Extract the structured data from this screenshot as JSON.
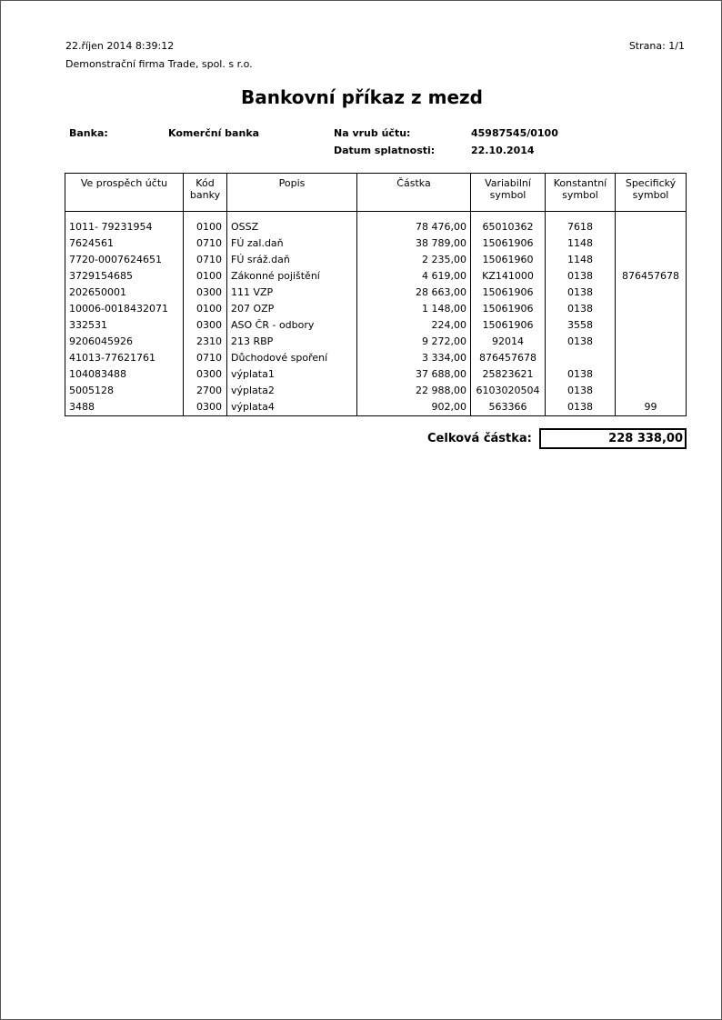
{
  "header": {
    "datetime": "22.říjen 2014  8:39:12",
    "page": "Strana: 1/1",
    "company": "Demonstrační firma Trade, spol. s r.o."
  },
  "title": "Bankovní příkaz z mezd",
  "info": {
    "bank_label": "Banka:",
    "bank_value": "Komerční banka",
    "debit_label": "Na vrub účtu:",
    "debit_value": "45987545/0100",
    "due_label": "Datum splatnosti:",
    "due_value": "22.10.2014"
  },
  "table": {
    "columns": [
      "Ve prospěch účtu",
      "Kód banky",
      "Popis",
      "Částka",
      "Variabilní symbol",
      "Konstantní symbol",
      "Specifický symbol"
    ],
    "rows": [
      [
        "1011- 79231954",
        "0100",
        "OSSZ",
        "78 476,00",
        "65010362",
        "7618",
        ""
      ],
      [
        "7624561",
        "0710",
        "FÚ zal.daň",
        "38 789,00",
        "15061906",
        "1148",
        ""
      ],
      [
        "7720-0007624651",
        "0710",
        "FÚ sráž.daň",
        "2 235,00",
        "15061960",
        "1148",
        ""
      ],
      [
        "3729154685",
        "0100",
        "Zákonné pojištění",
        "4 619,00",
        "KZ141000",
        "0138",
        "876457678"
      ],
      [
        "202650001",
        "0300",
        "111 VZP",
        "28 663,00",
        "15061906",
        "0138",
        ""
      ],
      [
        "10006-0018432071",
        "0100",
        "207 OZP",
        "1 148,00",
        "15061906",
        "0138",
        ""
      ],
      [
        "332531",
        "0300",
        "ASO ČR - odbory",
        "224,00",
        "15061906",
        "3558",
        ""
      ],
      [
        "9206045926",
        "2310",
        "213 RBP",
        "9 272,00",
        "92014",
        "0138",
        ""
      ],
      [
        "41013-77621761",
        "0710",
        "Důchodové spoření",
        "3 334,00",
        "876457678",
        "",
        ""
      ],
      [
        "104083488",
        "0300",
        "výplata1",
        "37 688,00",
        "25823621",
        "0138",
        ""
      ],
      [
        "5005128",
        "2700",
        "výplata2",
        "22 988,00",
        "6103020504",
        "0138",
        ""
      ],
      [
        "3488",
        "0300",
        "výplata4",
        "902,00",
        "563366",
        "0138",
        "99"
      ]
    ]
  },
  "total": {
    "label": "Celková částka:",
    "value": "228 338,00"
  }
}
